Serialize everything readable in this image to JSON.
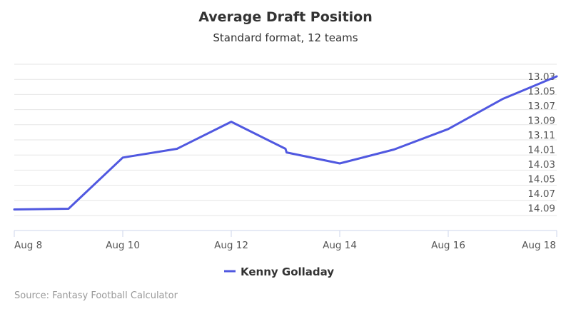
{
  "chart_data": {
    "type": "line",
    "title": "Average Draft Position",
    "subtitle": "Standard format, 12 teams",
    "x_tick_labels": [
      "Aug 8",
      "Aug 10",
      "Aug 12",
      "Aug 14",
      "Aug 16",
      "Aug 18"
    ],
    "x_range_days": [
      8,
      18
    ],
    "y_tick_labels": [
      "13.03",
      "13.05",
      "13.07",
      "13.09",
      "13.11",
      "14.01",
      "14.03",
      "14.05",
      "14.07",
      "14.09"
    ],
    "y_axis_side": "right",
    "y_reversed": true,
    "grid": true,
    "legend_position": "bottom-center",
    "series": [
      {
        "name": "Kenny Golladay",
        "color": "#5058e0",
        "x": [
          "Aug 8",
          "Aug 9",
          "Aug 10",
          "Aug 11",
          "Aug 12",
          "Aug 13",
          "Aug 13",
          "Aug 14",
          "Aug 15",
          "Aug 16",
          "Aug 17",
          "Aug 18"
        ],
        "adp_rank_index": [
          9.1,
          9.05,
          5.55,
          4.95,
          3.1,
          4.95,
          5.2,
          5.95,
          5.0,
          3.6,
          1.55,
          0.0
        ]
      }
    ]
  },
  "credits": "Source: Fantasy Football Calculator"
}
